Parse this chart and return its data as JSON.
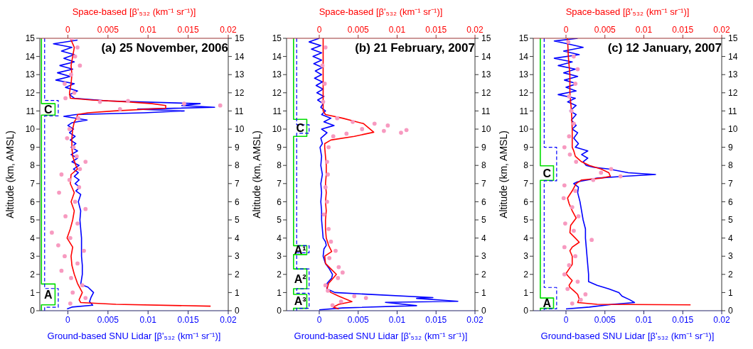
{
  "chart_data": [
    {
      "type": "line",
      "title": "(a) 25 November, 2006",
      "xlabel": "Ground-based SNU Lidar [β'₅₃₂ (km⁻¹ sr⁻¹)]",
      "x2label": "Space-based [β'₅₃₂ (km⁻¹ sr⁻¹)]",
      "ylabel": "Altitude (km, AMSL)",
      "xlim": [
        -0.0035,
        0.02
      ],
      "xticks": [
        0,
        0.005,
        0.01,
        0.015,
        0.02
      ],
      "x2lim": [
        -0.0035,
        0.02
      ],
      "x2ticks": [
        0,
        0.005,
        0.01,
        0.015,
        0.02
      ],
      "ylim": [
        0,
        15
      ],
      "yticks": [
        0,
        1,
        2,
        3,
        4,
        5,
        6,
        7,
        8,
        9,
        10,
        11,
        12,
        13,
        14,
        15
      ],
      "y2lim": [
        0,
        15
      ],
      "y2ticks": [
        0,
        1,
        2,
        3,
        4,
        5,
        6,
        7,
        8,
        9,
        10,
        11,
        12,
        13,
        14,
        15
      ],
      "grid": false,
      "legend": false,
      "annotations": [
        "C",
        "A"
      ],
      "series": [
        {
          "type": "line",
          "color": "#00dd00",
          "line_style": "solid",
          "x": [
            -0.0033,
            -0.0033,
            -0.0016,
            -0.0016,
            -0.0033,
            -0.0033,
            -0.0016,
            -0.0016,
            -0.0033,
            -0.0033
          ],
          "values": [
            15,
            11.4,
            11.4,
            10.77,
            10.77,
            1.47,
            1.47,
            0.32,
            0.32,
            0
          ]
        },
        {
          "type": "line",
          "color": "#0000ff",
          "line_style": "dashed",
          "x": [
            -0.0029,
            -0.0029,
            -0.0012,
            -0.0012,
            -0.0029,
            -0.0029,
            -0.0012,
            -0.0012,
            -0.0029,
            -0.0029
          ],
          "values": [
            15,
            11.58,
            11.58,
            10.73,
            10.73,
            1.22,
            1.22,
            0.19,
            0.19,
            0
          ]
        },
        {
          "type": "scatter",
          "axis": "x2",
          "color": "#f79ac0",
          "marker": "circle",
          "x": [
            0.0005,
            0.0012,
            0.0009,
            0.0015,
            0.0004,
            -0.0004,
            0.0008,
            -0.0003,
            0.004,
            0.0075,
            0.0145,
            0.019,
            0.0065,
            0.0013,
            0.0002,
            -0.0001,
            0.0007,
            0.0011,
            0.0022,
            0.0015,
            -0.0008,
            0.0002,
            0.0014,
            -0.0011,
            0.0009,
            0.0022,
            -0.0003,
            0.0012,
            -0.002,
            0.0003,
            -0.0012,
            0.002,
            -0.0004,
            0.0012,
            -0.0008,
            0.0004,
            0.0018,
            0.0006,
            0.0022,
            0.0003
          ],
          "values": [
            15,
            14.5,
            14,
            13.5,
            13,
            12.5,
            12,
            11.7,
            11.5,
            11.55,
            11.4,
            11.3,
            11.1,
            10.6,
            10,
            9.5,
            9,
            8.5,
            8.2,
            7.8,
            7.5,
            7.2,
            6.8,
            6.5,
            6,
            5.6,
            5.2,
            4.8,
            4.3,
            4,
            3.6,
            3.3,
            3,
            2.6,
            2.2,
            1.8,
            1.4,
            1,
            0.7,
            0.4
          ]
        },
        {
          "type": "line",
          "color": "#0000ff",
          "line_style": "solid",
          "x": [
            0.0012,
            -0.0018,
            0.0005,
            -0.0008,
            0.0008,
            -0.0005,
            0.0008,
            -0.001,
            0.0006,
            -0.0013,
            0.0003,
            -0.0015,
            0.0008,
            -0.0003,
            0.0012,
            0.0002,
            0.0008,
            0.005,
            0.0165,
            0.0142,
            0.0183,
            0.0087,
            0.0145,
            0.0095,
            0.001,
            -0.0005,
            0.0024,
            0.0005,
            0,
            0.0007,
            0.0002,
            0.0009,
            0.0003,
            0.001,
            0.0004,
            0.0012,
            0.0004,
            0.0012,
            0.0005,
            0.0014,
            0.0007,
            0.0013,
            0.0008,
            0.0014,
            0.0009,
            0.0015,
            0.001,
            0.0016,
            0.0013,
            0.0016,
            0.0015,
            0.0016,
            0.0017,
            0.0017,
            0.0017,
            0.0018,
            0.0018,
            0.0016,
            0.0025,
            0.0032,
            0.0029,
            0.0027,
            0.0031,
            0.0005,
            -0.0001
          ],
          "values": [
            14.9,
            14.7,
            14.5,
            14.3,
            14.1,
            13.9,
            13.7,
            13.5,
            13.3,
            13.1,
            12.9,
            12.7,
            12.5,
            12.3,
            12.1,
            11.9,
            11.7,
            11.55,
            11.4,
            11.3,
            11.2,
            11.1,
            11,
            10.9,
            10.8,
            10.7,
            10.5,
            10.35,
            10.2,
            10,
            9.8,
            9.6,
            9.4,
            9.2,
            9,
            8.8,
            8.6,
            8.4,
            8.2,
            8,
            7.8,
            7.6,
            7.4,
            7.2,
            7,
            6.8,
            6.6,
            6.4,
            6,
            5.5,
            5,
            4.5,
            4,
            3.5,
            3,
            2.5,
            2,
            1.45,
            1.3,
            1,
            0.75,
            0.5,
            0.3,
            0.2,
            0.1
          ]
        },
        {
          "type": "line",
          "axis": "x2",
          "color": "#ff0000",
          "line_style": "solid",
          "x": [
            0.0003,
            0.0008,
            0.0006,
            0.0004,
            0.0005,
            0.0004,
            0.0002,
            0.0003,
            0.003,
            0.0075,
            0.0105,
            0.0122,
            0.0122,
            0.0058,
            0.0025,
            0.0012,
            0.0011,
            0.0008,
            0.0006,
            0.0005,
            0.0005,
            0.0006,
            0.001,
            0.0012,
            0.0004,
            0.0003,
            0.0008,
            0.0004,
            0.0008,
            0.0006,
            0.0003,
            -0.0001,
            0.0006,
            0.0004,
            0.0005,
            0.0008,
            0.0012,
            0.0018,
            0.0014,
            0.0016,
            0.006,
            0.0178
          ],
          "values": [
            15,
            14.5,
            14,
            13.5,
            13,
            12.5,
            12,
            11.7,
            11.6,
            11.5,
            11.4,
            11.3,
            11.15,
            11,
            10.9,
            10.8,
            10.6,
            10.4,
            10,
            9.5,
            9,
            8.5,
            8,
            7.8,
            7.5,
            7,
            6.5,
            6,
            5.5,
            5,
            4.5,
            4,
            3.5,
            3,
            2.5,
            2,
            1.5,
            1,
            0.6,
            0.45,
            0.35,
            0.25
          ]
        }
      ]
    },
    {
      "type": "line",
      "title": "(b) 21 February, 2007",
      "xlabel": "Ground-based SNU Lidar  [β'₅₃₂ (km⁻¹ sr⁻¹)]",
      "x2label": "Space-based [β'₅₃₂ (km⁻¹ sr⁻¹)]",
      "ylabel": "Altitude (km, AMSL)",
      "xlim": [
        -0.0042,
        0.02
      ],
      "xticks": [
        0,
        0.005,
        0.01,
        0.015,
        0.02
      ],
      "x2lim": [
        -0.0042,
        0.02
      ],
      "x2ticks": [
        0,
        0.005,
        0.01,
        0.015,
        0.02
      ],
      "ylim": [
        0,
        15
      ],
      "yticks": [
        0,
        1,
        2,
        3,
        4,
        5,
        6,
        7,
        8,
        9,
        10,
        11,
        12,
        13,
        14,
        15
      ],
      "y2lim": [
        0,
        15
      ],
      "y2ticks": [
        0,
        1,
        2,
        3,
        4,
        5,
        6,
        7,
        8,
        9,
        10,
        11,
        12,
        13,
        14,
        15
      ],
      "grid": false,
      "legend": false,
      "annotations": [
        "C",
        "A¹",
        "A²",
        "A³"
      ],
      "series": [
        {
          "type": "line",
          "color": "#00dd00",
          "line_style": "solid",
          "x": [
            -0.0033,
            -0.0033,
            -0.0016,
            -0.0016,
            -0.0033,
            -0.0033,
            -0.0016,
            -0.0016,
            -0.0033,
            -0.0033,
            -0.0016,
            -0.0016,
            -0.0033,
            -0.0033,
            -0.0016,
            -0.0016,
            -0.0033,
            -0.0033
          ],
          "values": [
            15,
            10.54,
            10.54,
            9.6,
            9.6,
            3.58,
            3.58,
            3.09,
            3.09,
            2.3,
            2.3,
            1.21,
            1.21,
            0.9,
            0.9,
            0.13,
            0.13,
            0
          ]
        },
        {
          "type": "line",
          "color": "#0000ff",
          "line_style": "dashed",
          "x": [
            -0.0029,
            -0.0029,
            -0.0013,
            -0.0013,
            -0.0029,
            -0.0029,
            -0.0013,
            -0.0013,
            -0.0029,
            -0.0029,
            -0.0013,
            -0.0013,
            -0.0029,
            -0.0029,
            -0.0013,
            -0.0013,
            -0.0029,
            -0.0029
          ],
          "values": [
            15,
            10.24,
            10.24,
            9.77,
            9.77,
            3.58,
            3.58,
            3.19,
            3.19,
            2.3,
            2.3,
            1.21,
            1.21,
            0.96,
            0.96,
            0.13,
            0.13,
            0
          ]
        },
        {
          "type": "scatter",
          "axis": "x2",
          "color": "#f79ac0",
          "marker": "circle",
          "x": [
            0.0008,
            0.0004,
            0.0007,
            0.0005,
            0.0023,
            0.0043,
            0.0071,
            0.0088,
            0.0055,
            0.0112,
            0.0083,
            0.0105,
            0.0035,
            0.0018,
            0.0012,
            0.001,
            0.0011,
            0.0008,
            0.001,
            0.0006,
            0.0012,
            0.0015,
            0.0021,
            0.0013,
            0.0025,
            0.003,
            0.0024,
            0.0008,
            0.0011,
            0.0045,
            0.006,
            0.0028,
            0.0017
          ],
          "values": [
            14.5,
            13.5,
            12.5,
            11.5,
            10.6,
            10.4,
            10.3,
            10.2,
            10,
            9.95,
            9.9,
            9.8,
            9.75,
            9.6,
            9,
            8.2,
            7.5,
            6.8,
            6,
            5.3,
            4.5,
            3.8,
            3.3,
            2.9,
            2.4,
            2.1,
            1.8,
            1.4,
            1.1,
            0.8,
            0.7,
            0.5,
            0.3
          ]
        },
        {
          "type": "line",
          "color": "#0000ff",
          "line_style": "solid",
          "x": [
            0,
            -0.0013,
            0.0002,
            -0.001,
            0.0003,
            -0.0008,
            0.0003,
            -0.0007,
            0.0004,
            -0.0005,
            0.0003,
            -0.0006,
            0.0004,
            -0.0004,
            0.0005,
            -0.0003,
            0.0006,
            -0.0002,
            0.0005,
            0.0002,
            0.0008,
            0.0003,
            0.0015,
            0.0006,
            0.0019,
            0.0003,
            0.001,
            0.0002,
            0.0004,
            0.0001,
            0.0003,
            0.0002,
            0.0004,
            0.0002,
            0.0003,
            0.0002,
            0.0003,
            0.0003,
            0.0004,
            0.0005,
            0.0008,
            0.0009,
            0.0006,
            0.0005,
            0.0008,
            0.0013,
            0.0017,
            0.0016,
            0.001,
            0.001,
            0.002,
            0.0146,
            0.0125,
            0.0178,
            0.0085,
            0.0125,
            0.003,
            0
          ],
          "values": [
            15,
            14.8,
            14.6,
            14.4,
            14.2,
            14,
            13.8,
            13.6,
            13.4,
            13.2,
            13,
            12.8,
            12.6,
            12.4,
            12.2,
            12,
            11.8,
            11.6,
            11.4,
            11.2,
            11,
            10.8,
            10.6,
            10.4,
            10.2,
            10,
            9.8,
            9.5,
            9.2,
            9,
            8.5,
            8,
            7.5,
            7,
            6.5,
            6,
            5.5,
            5,
            4.5,
            4,
            3.8,
            3.6,
            3.4,
            3,
            2.6,
            2.3,
            2,
            1.8,
            1.5,
            1.2,
            1,
            0.72,
            0.68,
            0.52,
            0.46,
            0.28,
            0.15,
            0.05
          ]
        },
        {
          "type": "line",
          "axis": "x2",
          "color": "#ff0000",
          "line_style": "solid",
          "x": [
            0.0005,
            0.0005,
            0.0005,
            0.0005,
            0.0005,
            0.0008,
            0.003,
            0.0057,
            0.007,
            0.0045,
            0.0015,
            0.0007,
            0.0007,
            0.0008,
            0.0009,
            0.0009,
            0.0008,
            0.0009,
            0.0008,
            0.0009,
            0.0008,
            0.0008,
            0.0009,
            0.0012,
            0.0016,
            0.0007,
            0.0008,
            0.0015,
            0.0022,
            0.0018,
            0.0012,
            0.001,
            0.0015,
            0.0025,
            0.0042,
            0.0025,
            0.0018,
            0.0025
          ],
          "values": [
            15,
            14,
            13,
            12,
            11,
            10.8,
            10.6,
            10.3,
            9.83,
            9.6,
            9.4,
            9.2,
            9,
            8.5,
            8,
            7.5,
            7,
            6.5,
            6,
            5.5,
            5,
            4.5,
            4,
            3.6,
            3.26,
            3,
            2.6,
            2.3,
            2,
            1.8,
            1.5,
            1.2,
            1,
            0.8,
            0.5,
            0.35,
            0.2,
            0.1
          ]
        }
      ]
    },
    {
      "type": "line",
      "title": "(c) 12 January, 2007",
      "xlabel": "Ground-based SNU Lidar [β'₅₃₂ (km⁻¹ sr⁻¹)]",
      "x2label": "Space-based [β'₅₃₂ (km⁻¹ sr⁻¹)]",
      "ylabel": "Altitude (km, AMSL)",
      "xlim": [
        -0.0042,
        0.02
      ],
      "xticks": [
        0,
        0.005,
        0.01,
        0.015,
        0.02
      ],
      "x2lim": [
        -0.0042,
        0.02
      ],
      "x2ticks": [
        0,
        0.005,
        0.01,
        0.015,
        0.02
      ],
      "ylim": [
        0,
        15
      ],
      "yticks": [
        0,
        1,
        2,
        3,
        4,
        5,
        6,
        7,
        8,
        9,
        10,
        11,
        12,
        13,
        14,
        15
      ],
      "y2lim": [
        0,
        15
      ],
      "y2ticks": [
        0,
        1,
        2,
        3,
        4,
        5,
        6,
        7,
        8,
        9,
        10,
        11,
        12,
        13,
        14,
        15
      ],
      "grid": false,
      "legend": false,
      "annotations": [
        "C",
        "A"
      ],
      "series": [
        {
          "type": "line",
          "color": "#00dd00",
          "line_style": "solid",
          "x": [
            -0.0033,
            -0.0033,
            -0.0016,
            -0.0016,
            -0.0033,
            -0.0033,
            -0.0016,
            -0.0016,
            -0.0033,
            -0.0033
          ],
          "values": [
            15,
            7.98,
            7.98,
            7.18,
            7.18,
            0.7,
            0.7,
            0.13,
            0.13,
            0
          ]
        },
        {
          "type": "line",
          "color": "#0000ff",
          "line_style": "dashed",
          "x": [
            -0.0028,
            -0.0028,
            -0.0012,
            -0.0012,
            -0.0028,
            -0.0028,
            -0.0012,
            -0.0012,
            -0.0028,
            -0.0028
          ],
          "values": [
            15,
            9,
            9,
            7.15,
            7.15,
            1.28,
            1.28,
            0.1,
            0.1,
            0
          ]
        },
        {
          "type": "scatter",
          "axis": "x2",
          "color": "#f79ac0",
          "marker": "circle",
          "x": [
            0.0003,
            0.001,
            0.0015,
            0.0012,
            0.0004,
            0.0007,
            0.001,
            0.0004,
            -0.0002,
            0.0005,
            0.0013,
            0.0058,
            0.0045,
            0.007,
            0.0035,
            -0.0002,
            0.0012,
            -0.0003,
            0.0008,
            0.0016,
            -0.0001,
            0.001,
            0.0033,
            -0.0002,
            0.0012,
            0.0004,
            -0.0002,
            0.0015,
            0.0002,
            0.0025,
            0.0019,
            0.0008
          ],
          "values": [
            14.8,
            14,
            13.3,
            12.5,
            11.8,
            11,
            10.3,
            9.6,
            9,
            8.6,
            8.2,
            7.8,
            7.6,
            7.4,
            7.2,
            6.9,
            6.6,
            6.2,
            5.7,
            5.2,
            4.8,
            4.4,
            3.9,
            3.5,
            3,
            2.5,
            2,
            1.6,
            1.2,
            0.9,
            0.6,
            0.4
          ]
        },
        {
          "type": "line",
          "color": "#0000ff",
          "line_style": "solid",
          "x": [
            0.0015,
            -0.0015,
            0.0002,
            0.0022,
            -0.0003,
            0.0017,
            -0.0015,
            0.0008,
            -0.001,
            0.0012,
            -0.0003,
            0.0015,
            -0.0002,
            0.0014,
            0,
            0.0013,
            -0.001,
            0.0012,
            0.0002,
            0.0013,
            0.0005,
            0.0013,
            0.0007,
            0.0013,
            0.0008,
            0.0015,
            0.001,
            0.0016,
            0.0012,
            0.0028,
            0.002,
            0.0028,
            0.0022,
            0.0026,
            0.0035,
            0.0055,
            0.008,
            0.0115,
            0.0075,
            0.004,
            0.0015,
            0.001,
            0.0016,
            0.0015,
            0.0018,
            0.002,
            0.0022,
            0.0025,
            0.0025,
            0.0026,
            0.0027,
            0.0028,
            0.0029,
            0.0029,
            0.004,
            0.0055,
            0.0068,
            0.0072,
            0.0082,
            0.0088,
            0.006,
            0.003,
            0
          ],
          "values": [
            15,
            14.85,
            14.7,
            14.5,
            14.3,
            14.1,
            13.9,
            13.7,
            13.5,
            13.3,
            13.1,
            12.9,
            12.7,
            12.5,
            12.3,
            12.1,
            11.9,
            11.7,
            11.5,
            11.3,
            11,
            10.8,
            10.5,
            10.2,
            10,
            9.8,
            9.5,
            9.2,
            9,
            8.8,
            8.6,
            8.4,
            8.2,
            8,
            7.9,
            7.8,
            7.6,
            7.5,
            7.4,
            7.3,
            7.1,
            7,
            6.8,
            6.5,
            6,
            5.5,
            5,
            4.5,
            4,
            3.5,
            3,
            2.5,
            2,
            1.6,
            1.4,
            1.2,
            1,
            0.8,
            0.6,
            0.45,
            0.35,
            0.2,
            0.1
          ]
        },
        {
          "type": "line",
          "axis": "x2",
          "color": "#ff0000",
          "line_style": "solid",
          "x": [
            0.0002,
            0.0003,
            0.0005,
            0.0005,
            0.0007,
            0.0008,
            0.0008,
            0.001,
            0.0012,
            0.002,
            0.003,
            0.0045,
            0.0055,
            0.0057,
            0.0045,
            0.002,
            0.0013,
            0.0008,
            0.0002,
            0.0004,
            0.0008,
            0.0013,
            0.0006,
            0.0005,
            0.0012,
            0.0017,
            0.0008,
            0.0005,
            0.0008,
            0.0008,
            0.0004,
            0,
            0.0005,
            0.0008,
            0.0004,
            0.0005,
            0.001,
            0.0015,
            0.0017,
            0.0015,
            0.004,
            0.016
          ],
          "values": [
            15,
            14,
            13,
            12,
            11,
            10,
            9,
            8.8,
            8.5,
            8.2,
            8,
            7.8,
            7.6,
            7.4,
            7.3,
            7.2,
            7,
            6.6,
            6.2,
            5.9,
            5.5,
            5.1,
            4.7,
            4.3,
            4,
            3.77,
            3.5,
            3.3,
            3,
            2.55,
            2.3,
            2.04,
            1.8,
            1.66,
            1.4,
            1.28,
            1.1,
            0.9,
            0.64,
            0.45,
            0.35,
            0.32
          ]
        }
      ]
    }
  ]
}
